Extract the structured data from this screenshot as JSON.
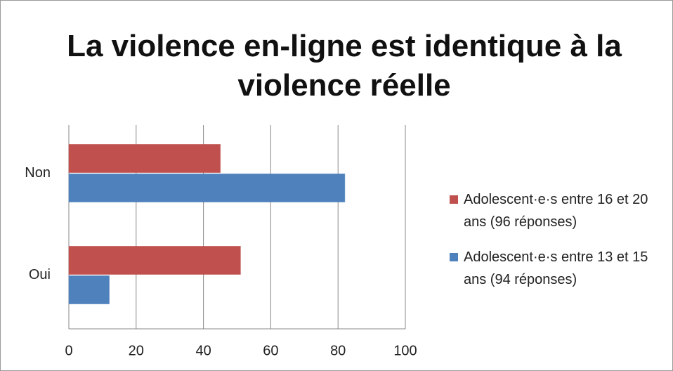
{
  "chart_data": {
    "type": "bar",
    "orientation": "horizontal",
    "title": "La violence en-ligne est identique à la violence réelle",
    "categories": [
      "Non",
      "Oui"
    ],
    "series": [
      {
        "name": "Adolescent·e·s entre 16 et 20 ans (96 réponses)",
        "color": "#c0504d",
        "values": [
          45,
          51
        ]
      },
      {
        "name": "Adolescent·e·s entre 13 et 15 ans (94 réponses)",
        "color": "#4f81bd",
        "values": [
          82,
          12
        ]
      }
    ],
    "xlim": [
      0,
      100
    ],
    "xticks": [
      0,
      20,
      40,
      60,
      80,
      100
    ],
    "grid": true,
    "legend": "right"
  }
}
